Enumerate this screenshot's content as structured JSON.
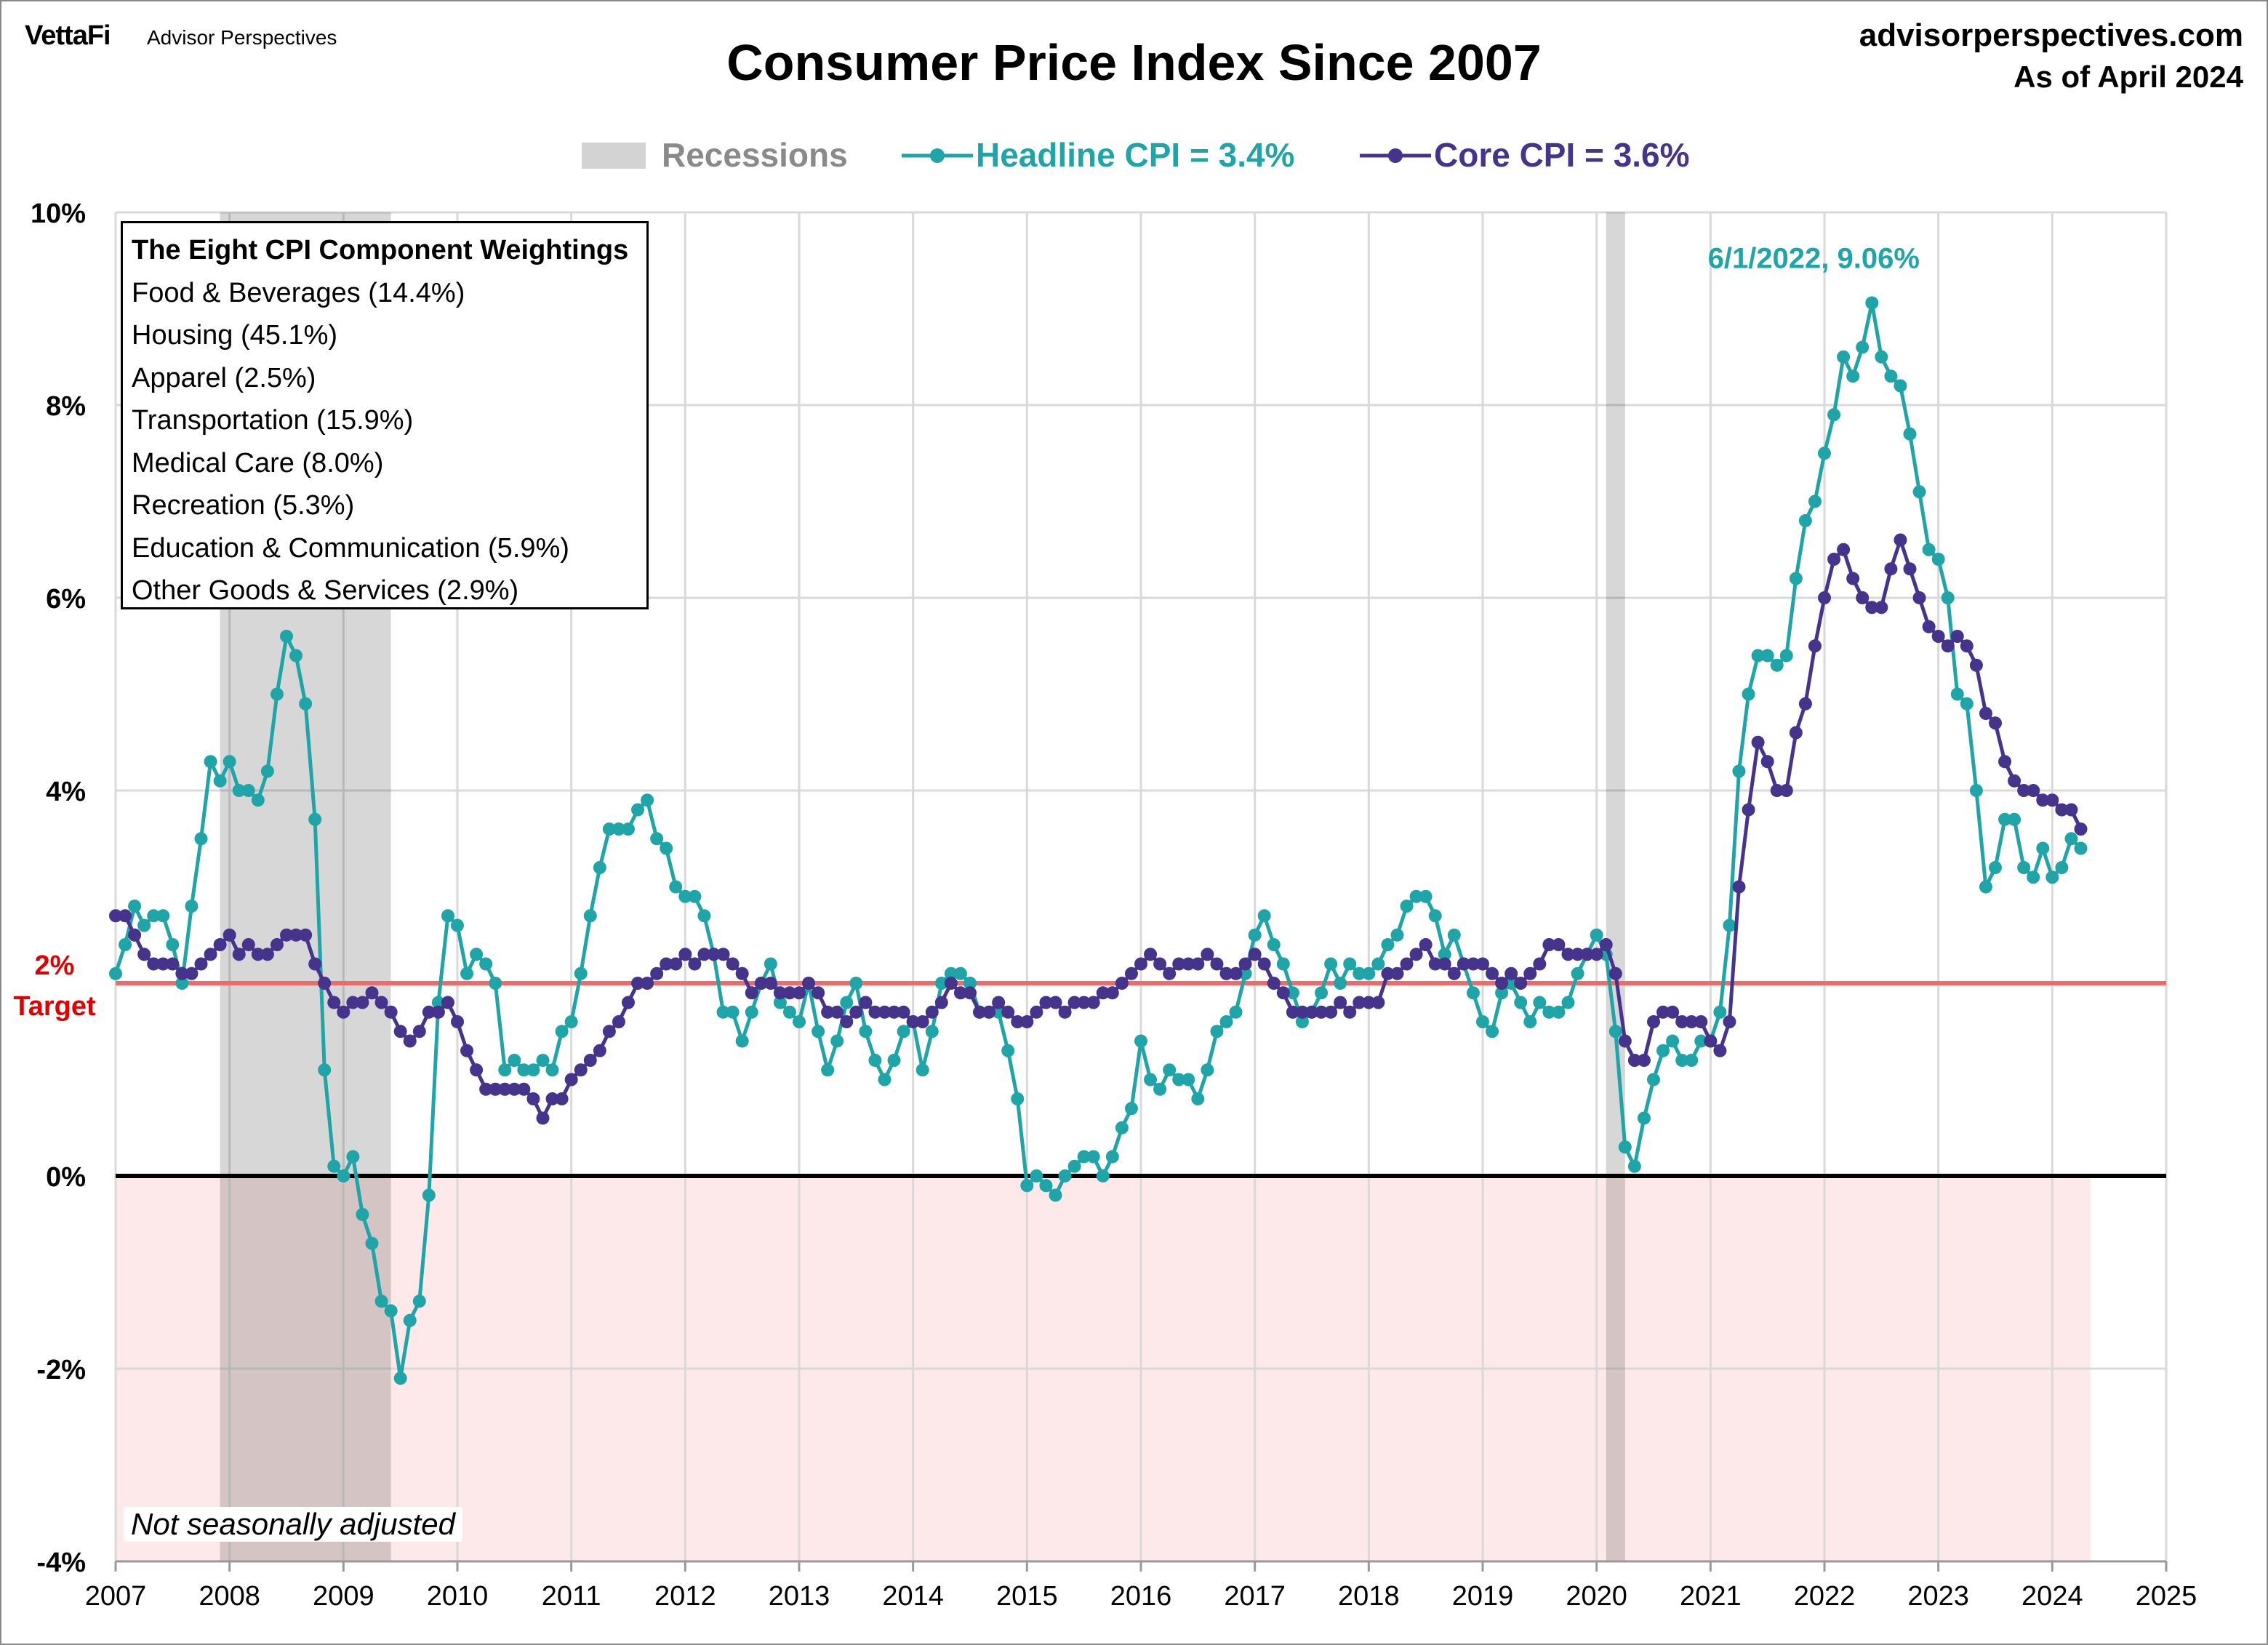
{
  "header": {
    "brand": "VettaFi",
    "brand_sub": "Advisor Perspectives",
    "site": "advisorperspectives.com",
    "as_of": "As of April 2024"
  },
  "legend": {
    "recessions": "Recessions",
    "headline": "Headline CPI = 3.4%",
    "core": "Core CPI =  3.6%"
  },
  "weightings": {
    "title": "The Eight CPI Component Weightings",
    "items": [
      "Food & Beverages (14.4%)",
      "Housing (45.1%)",
      "Apparel (2.5%)",
      "Transportation (15.9%)",
      "Medical Care (8.0%)",
      "Recreation (5.3%)",
      "Education & Communication (5.9%)",
      "Other Goods & Services (2.9%)"
    ]
  },
  "note": "Not seasonally adjusted",
  "target_label": [
    "2%",
    "Target"
  ],
  "chart_data": {
    "type": "line",
    "title": "Consumer Price Index Since 2007",
    "xlim": [
      2007,
      2025
    ],
    "ylim": [
      -4,
      10
    ],
    "x_ticks": [
      "2007",
      "2008",
      "2009",
      "2010",
      "2011",
      "2012",
      "2013",
      "2014",
      "2015",
      "2016",
      "2017",
      "2018",
      "2019",
      "2020",
      "2021",
      "2022",
      "2023",
      "2024",
      "2025"
    ],
    "y_ticks": [
      {
        "v": 10,
        "label": "10%"
      },
      {
        "v": 8,
        "label": "8%"
      },
      {
        "v": 6,
        "label": "6%"
      },
      {
        "v": 4,
        "label": "4%"
      },
      {
        "v": 2,
        "label": "2%"
      },
      {
        "v": 0,
        "label": "0%"
      },
      {
        "v": -2,
        "label": "-2%"
      },
      {
        "v": -4,
        "label": "-4%"
      }
    ],
    "grid": true,
    "legend_position": "top",
    "start": "2007-01",
    "frequency": "monthly",
    "target": 2,
    "recessions": [
      [
        "2007-12",
        "2009-06"
      ],
      [
        "2020-02",
        "2020-04"
      ]
    ],
    "annotation": "6/1/2022, 9.06%",
    "colors": {
      "headline": "#1fa5a8",
      "core": "#45338c",
      "target": "#ee6b6b",
      "recession": "#d3d3d3",
      "negative_zone": "#fde9e9"
    },
    "series": [
      {
        "name": "Headline CPI",
        "values": [
          2.1,
          2.4,
          2.8,
          2.6,
          2.7,
          2.7,
          2.4,
          2.0,
          2.8,
          3.5,
          4.3,
          4.1,
          4.3,
          4.0,
          4.0,
          3.9,
          4.2,
          5.0,
          5.6,
          5.4,
          4.9,
          3.7,
          1.1,
          0.1,
          0.0,
          0.2,
          -0.4,
          -0.7,
          -1.3,
          -1.4,
          -2.1,
          -1.5,
          -1.3,
          -0.2,
          1.8,
          2.7,
          2.6,
          2.1,
          2.3,
          2.2,
          2.0,
          1.1,
          1.2,
          1.1,
          1.1,
          1.2,
          1.1,
          1.5,
          1.6,
          2.1,
          2.7,
          3.2,
          3.6,
          3.6,
          3.6,
          3.8,
          3.9,
          3.5,
          3.4,
          3.0,
          2.9,
          2.9,
          2.7,
          2.3,
          1.7,
          1.7,
          1.4,
          1.7,
          2.0,
          2.2,
          1.8,
          1.7,
          1.6,
          2.0,
          1.5,
          1.1,
          1.4,
          1.8,
          2.0,
          1.5,
          1.2,
          1.0,
          1.2,
          1.5,
          1.6,
          1.1,
          1.5,
          2.0,
          2.1,
          2.1,
          2.0,
          1.7,
          1.7,
          1.7,
          1.3,
          0.8,
          -0.1,
          0.0,
          -0.1,
          -0.2,
          0.0,
          0.1,
          0.2,
          0.2,
          0.0,
          0.2,
          0.5,
          0.7,
          1.4,
          1.0,
          0.9,
          1.1,
          1.0,
          1.0,
          0.8,
          1.1,
          1.5,
          1.6,
          1.7,
          2.1,
          2.5,
          2.7,
          2.4,
          2.2,
          1.9,
          1.6,
          1.7,
          1.9,
          2.2,
          2.0,
          2.2,
          2.1,
          2.1,
          2.2,
          2.4,
          2.5,
          2.8,
          2.9,
          2.9,
          2.7,
          2.3,
          2.5,
          2.2,
          1.9,
          1.6,
          1.5,
          1.9,
          2.0,
          1.8,
          1.6,
          1.8,
          1.7,
          1.7,
          1.8,
          2.1,
          2.3,
          2.5,
          2.3,
          1.5,
          0.3,
          0.1,
          0.6,
          1.0,
          1.3,
          1.4,
          1.2,
          1.2,
          1.4,
          1.4,
          1.7,
          2.6,
          4.2,
          5.0,
          5.4,
          5.4,
          5.3,
          5.4,
          6.2,
          6.8,
          7.0,
          7.5,
          7.9,
          8.5,
          8.3,
          8.6,
          9.06,
          8.5,
          8.3,
          8.2,
          7.7,
          7.1,
          6.5,
          6.4,
          6.0,
          5.0,
          4.9,
          4.0,
          3.0,
          3.2,
          3.7,
          3.7,
          3.2,
          3.1,
          3.4,
          3.1,
          3.2,
          3.5,
          3.4
        ]
      },
      {
        "name": "Core CPI",
        "values": [
          2.7,
          2.7,
          2.5,
          2.3,
          2.2,
          2.2,
          2.2,
          2.1,
          2.1,
          2.2,
          2.3,
          2.4,
          2.5,
          2.3,
          2.4,
          2.3,
          2.3,
          2.4,
          2.5,
          2.5,
          2.5,
          2.2,
          2.0,
          1.8,
          1.7,
          1.8,
          1.8,
          1.9,
          1.8,
          1.7,
          1.5,
          1.4,
          1.5,
          1.7,
          1.7,
          1.8,
          1.6,
          1.3,
          1.1,
          0.9,
          0.9,
          0.9,
          0.9,
          0.9,
          0.8,
          0.6,
          0.8,
          0.8,
          1.0,
          1.1,
          1.2,
          1.3,
          1.5,
          1.6,
          1.8,
          2.0,
          2.0,
          2.1,
          2.2,
          2.2,
          2.3,
          2.2,
          2.3,
          2.3,
          2.3,
          2.2,
          2.1,
          1.9,
          2.0,
          2.0,
          1.9,
          1.9,
          1.9,
          2.0,
          1.9,
          1.7,
          1.7,
          1.6,
          1.7,
          1.8,
          1.7,
          1.7,
          1.7,
          1.7,
          1.6,
          1.6,
          1.7,
          1.8,
          2.0,
          1.9,
          1.9,
          1.7,
          1.7,
          1.8,
          1.7,
          1.6,
          1.6,
          1.7,
          1.8,
          1.8,
          1.7,
          1.8,
          1.8,
          1.8,
          1.9,
          1.9,
          2.0,
          2.1,
          2.2,
          2.3,
          2.2,
          2.1,
          2.2,
          2.2,
          2.2,
          2.3,
          2.2,
          2.1,
          2.1,
          2.2,
          2.3,
          2.2,
          2.0,
          1.9,
          1.7,
          1.7,
          1.7,
          1.7,
          1.7,
          1.8,
          1.7,
          1.8,
          1.8,
          1.8,
          2.1,
          2.1,
          2.2,
          2.3,
          2.4,
          2.2,
          2.2,
          2.1,
          2.2,
          2.2,
          2.2,
          2.1,
          2.0,
          2.1,
          2.0,
          2.1,
          2.2,
          2.4,
          2.4,
          2.3,
          2.3,
          2.3,
          2.3,
          2.4,
          2.1,
          1.4,
          1.2,
          1.2,
          1.6,
          1.7,
          1.7,
          1.6,
          1.6,
          1.6,
          1.4,
          1.3,
          1.6,
          3.0,
          3.8,
          4.5,
          4.3,
          4.0,
          4.0,
          4.6,
          4.9,
          5.5,
          6.0,
          6.4,
          6.5,
          6.2,
          6.0,
          5.9,
          5.9,
          6.3,
          6.6,
          6.3,
          6.0,
          5.7,
          5.6,
          5.5,
          5.6,
          5.5,
          5.3,
          4.8,
          4.7,
          4.3,
          4.1,
          4.0,
          4.0,
          3.9,
          3.9,
          3.8,
          3.8,
          3.6
        ]
      }
    ]
  }
}
